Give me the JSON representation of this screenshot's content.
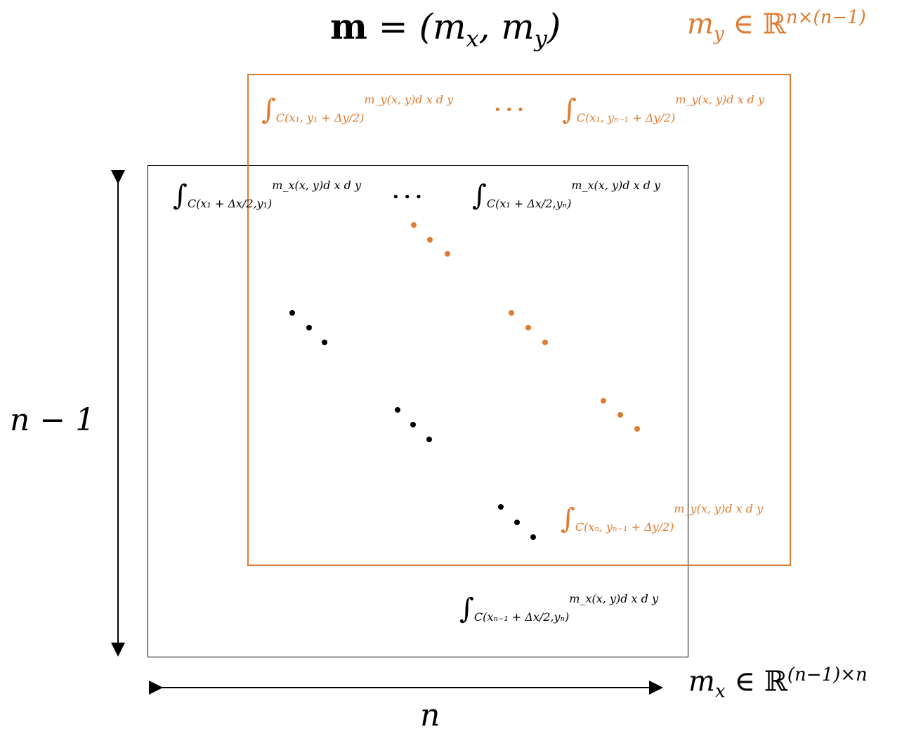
{
  "title": {
    "bold": "m",
    "rest": " = (m",
    "x": "x",
    "comma": ", m",
    "y": "y",
    "close": ")"
  },
  "my_set": {
    "m": "m",
    "sub": "y",
    "in": " ∈ ℝ",
    "sup": "n×(n−1)",
    "color": "#E07A30"
  },
  "mx_set": {
    "m": "m",
    "sub": "x",
    "in": " ∈ ℝ",
    "sup": "(n−1)×n"
  },
  "dim_vertical": "n − 1",
  "dim_horizontal": "n",
  "orange_integrals": {
    "top_left_sub": "C(x₁, y₁ + Δy/2)",
    "top_right_sub": "C(x₁, yₙ₋₁ + Δy/2)",
    "bottom_right_sub": "C(xₙ, yₙ₋₁ + Δy/2)",
    "integrand": "m_y(x, y)d x d y",
    "ellipsis": "• • •"
  },
  "black_integrals": {
    "top_left_sub": "C(x₁ + Δx/2,y₁)",
    "top_right_sub": "C(x₁ + Δx/2,yₙ)",
    "bottom_right_sub": "C(xₙ₋₁ + Δx/2,yₙ)",
    "integrand": "m_x(x, y)d x d y",
    "ellipsis": "• • •"
  },
  "colors": {
    "orange": "#E07A30",
    "black": "#000000"
  }
}
